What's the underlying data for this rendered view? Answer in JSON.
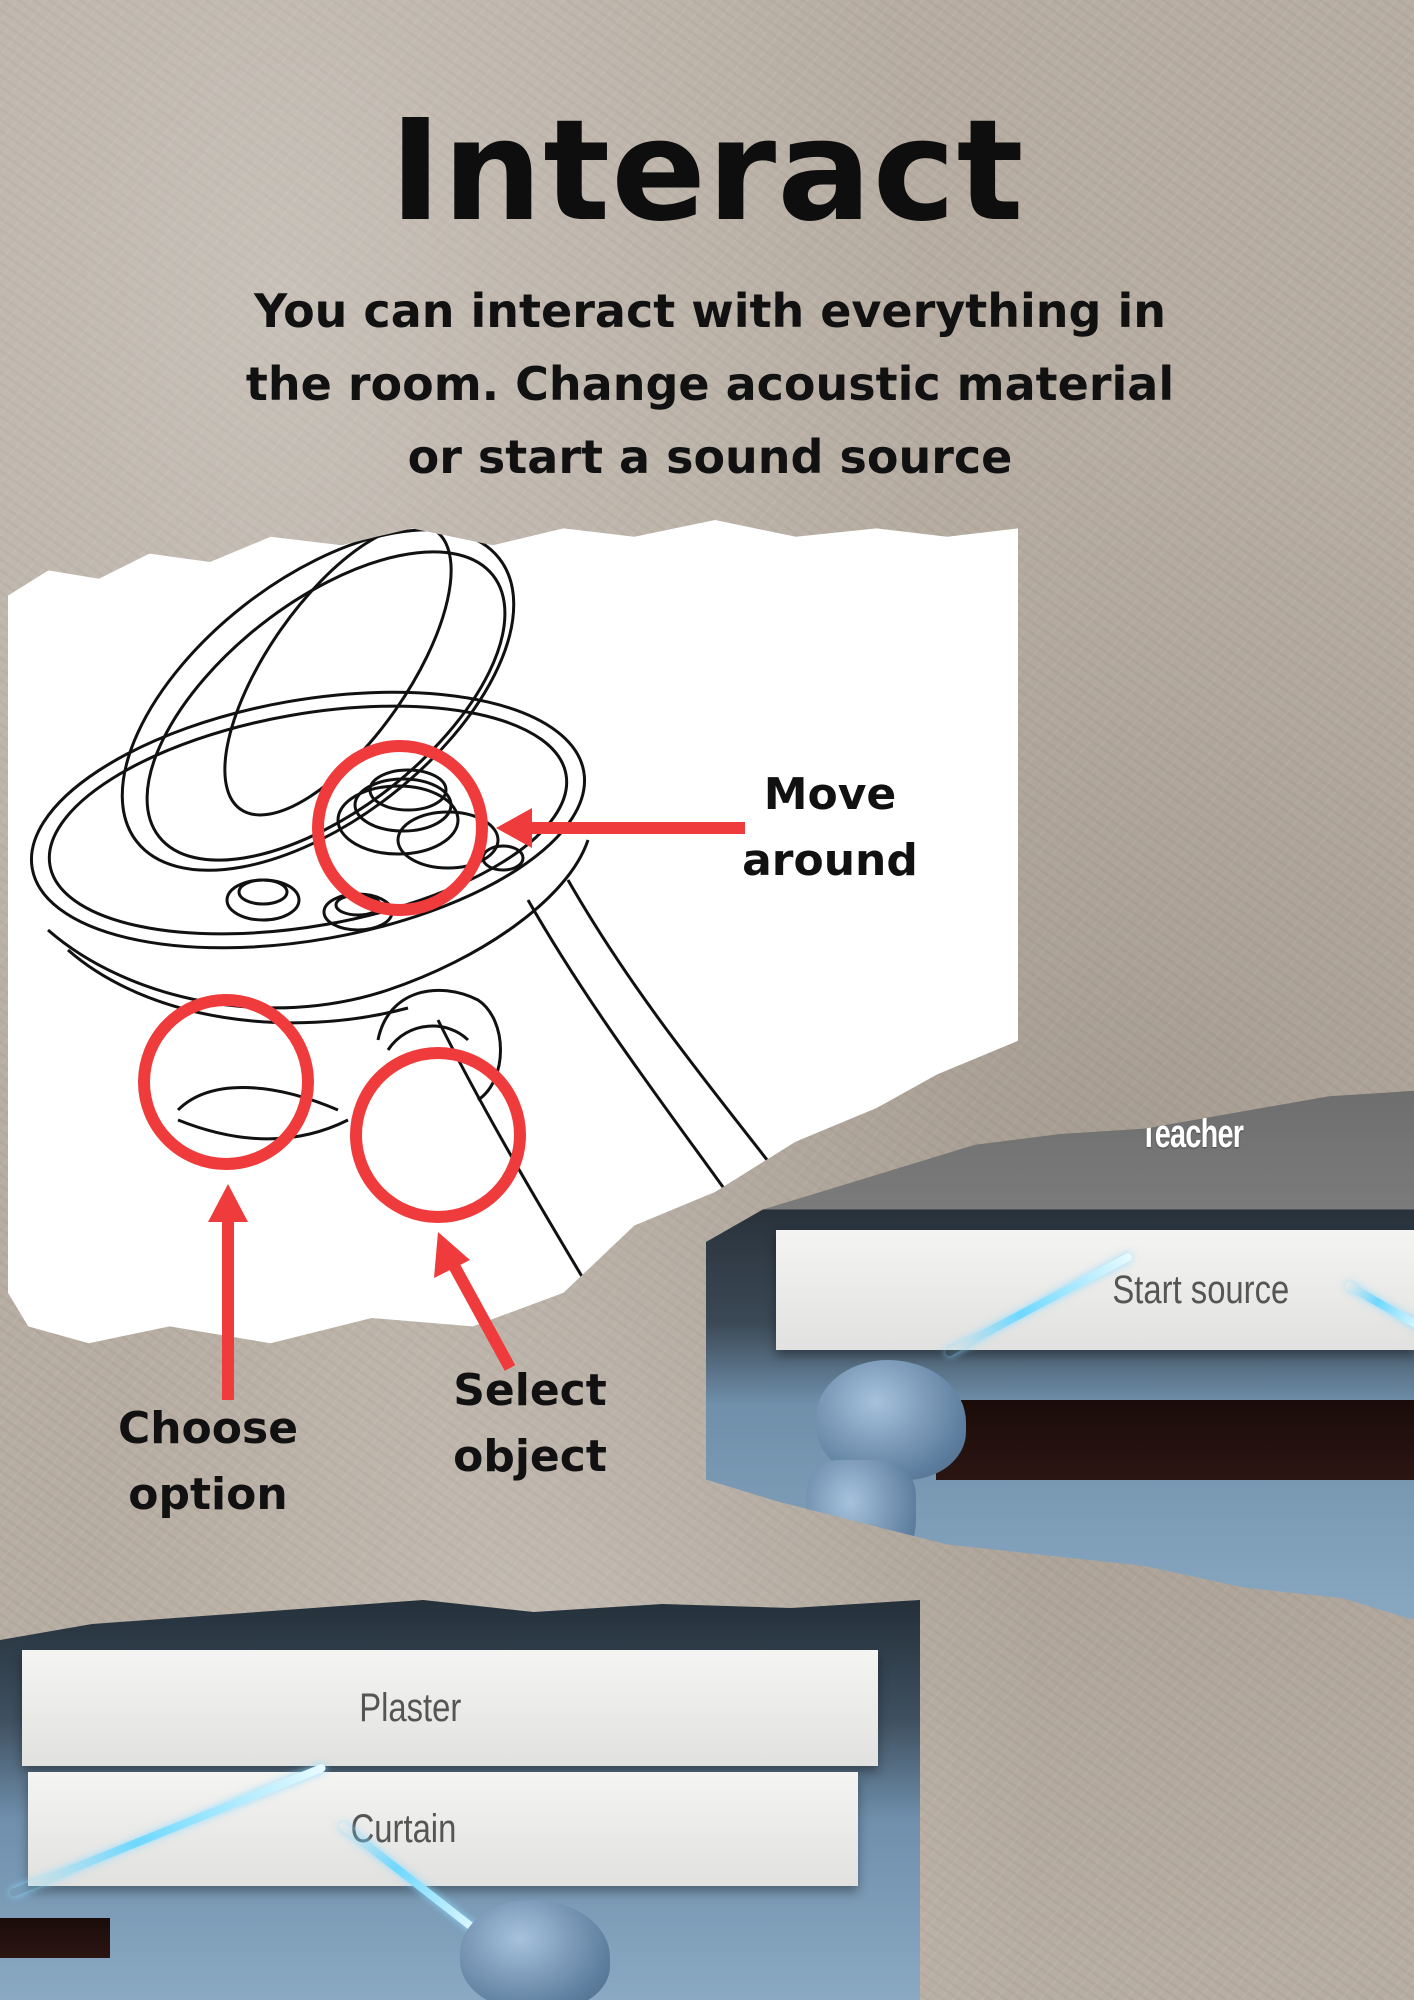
{
  "header": {
    "title": "Interact",
    "subtitle": "You can interact with everything in the room. Change acoustic material or start a sound source"
  },
  "annotations": {
    "move": "Move\naround",
    "choose": "Choose\noption",
    "select": "Select\nobject"
  },
  "vr_view_source": {
    "teacher_label": "Teacher",
    "button_label": "Start source"
  },
  "vr_view_material": {
    "options": [
      "Plaster",
      "Curtain"
    ]
  },
  "colors": {
    "accent_red": "#ef3b3b",
    "beam_blue": "#6fd8ff"
  },
  "icons": {
    "controller": "vr-controller-icon"
  }
}
